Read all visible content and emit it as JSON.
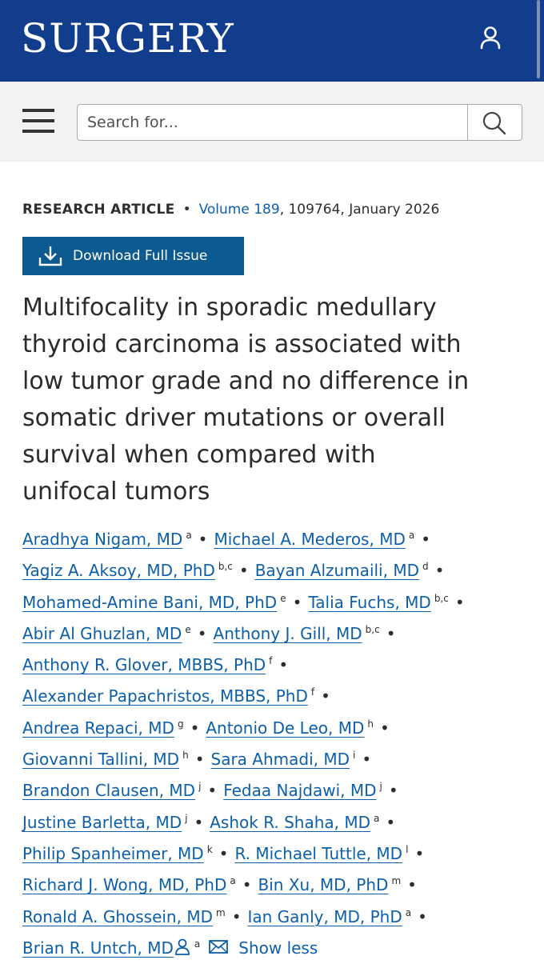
{
  "header": {
    "journal_title": "SURGERY",
    "brand_color": "#123c8c",
    "user_icon": "user-icon"
  },
  "search": {
    "placeholder": "Search for...",
    "menu_icon": "hamburger-menu-icon",
    "search_icon": "search-icon"
  },
  "article": {
    "type": "RESEARCH ARTICLE",
    "volume_link": "Volume 189",
    "citation_rest": ", 109764, January 2026",
    "download_label": "Download Full Issue",
    "download_icon": "download-icon",
    "title_lines": [
      "Multifocality in sporadic medullary",
      "thyroid carcinoma is associated with",
      "low tumor grade and no difference in",
      "somatic driver mutations or overall",
      "survival when compared with",
      "unifocal tumors"
    ]
  },
  "authors": [
    {
      "name": "Aradhya Nigam, MD",
      "aff": "a"
    },
    {
      "name": "Michael A. Mederos, MD",
      "aff": "a"
    },
    {
      "name": "Yagiz A. Aksoy, MD, PhD",
      "aff": "b,c"
    },
    {
      "name": "Bayan Alzumaili, MD",
      "aff": "d"
    },
    {
      "name": "Mohamed-Amine Bani, MD, PhD",
      "aff": "e"
    },
    {
      "name": "Talia Fuchs, MD",
      "aff": "b,c"
    },
    {
      "name": "Abir Al Ghuzlan, MD",
      "aff": "e"
    },
    {
      "name": "Anthony J. Gill, MD",
      "aff": "b,c"
    },
    {
      "name": "Anthony R. Glover, MBBS, PhD",
      "aff": "f"
    },
    {
      "name": "Alexander Papachristos, MBBS, PhD",
      "aff": "f"
    },
    {
      "name": "Andrea Repaci, MD",
      "aff": "g"
    },
    {
      "name": "Antonio De Leo, MD",
      "aff": "h"
    },
    {
      "name": "Giovanni Tallini, MD",
      "aff": "h"
    },
    {
      "name": "Sara Ahmadi, MD",
      "aff": "i"
    },
    {
      "name": "Brandon Clausen, MD",
      "aff": "j"
    },
    {
      "name": "Fedaa Najdawi, MD",
      "aff": "j"
    },
    {
      "name": "Justine Barletta, MD",
      "aff": "j"
    },
    {
      "name": "Ashok R. Shaha, MD",
      "aff": "a"
    },
    {
      "name": "Philip Spanheimer, MD",
      "aff": "k"
    },
    {
      "name": "R. Michael Tuttle, MD",
      "aff": "l"
    },
    {
      "name": "Richard J. Wong, MD, PhD",
      "aff": "a"
    },
    {
      "name": "Bin Xu, MD, PhD",
      "aff": "m"
    },
    {
      "name": "Ronald A. Ghossein, MD",
      "aff": "m"
    },
    {
      "name": "Ian Ganly, MD, PhD",
      "aff": "a"
    },
    {
      "name": "Brian R. Untch, MD",
      "aff": "a"
    }
  ],
  "author_lines": [
    [
      0,
      1
    ],
    [
      2,
      3
    ],
    [
      4,
      5
    ],
    [
      6,
      7
    ],
    [
      8
    ],
    [
      9
    ],
    [
      10,
      11
    ],
    [
      12,
      13
    ],
    [
      14,
      15
    ],
    [
      16,
      17
    ],
    [
      18,
      19
    ],
    [
      20,
      21
    ],
    [
      22,
      23
    ],
    [
      24
    ]
  ],
  "last_author_icons": [
    "person-icon",
    "mail-icon"
  ],
  "show_less_label": "Show less",
  "separator": "•",
  "link_color": "#0c5fa8"
}
